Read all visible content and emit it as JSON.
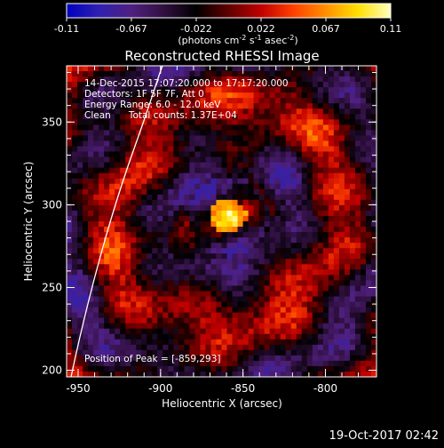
{
  "colorbar": {
    "ticks": [
      "-0.11",
      "-0.067",
      "-0.022",
      "0.022",
      "0.067",
      "0.11"
    ],
    "units_main": "(photons cm",
    "units_sup1": "-2",
    "units_mid": " s",
    "units_sup2": "-1",
    "units_end": " asec",
    "units_sup3": "-2",
    "units_close": ")",
    "stops": [
      "#0000c0",
      "#3020b0",
      "#502080",
      "#301040",
      "#000000",
      "#600000",
      "#c00000",
      "#ff4000",
      "#ff9000",
      "#ffe000",
      "#ffffc0"
    ]
  },
  "plot": {
    "title": "Reconstructed RHESSI Image",
    "info_lines": [
      "14-Dec-2015 17:07:20.000 to 17:17:20.000",
      "Detectors: 1F 5F 7F, Att 0",
      "Energy Range: 6.0 - 12.0 keV",
      "Clean      Total counts: 1.37E+04"
    ],
    "peak_label": "Position of Peak = [-859,293]",
    "xlabel": "Heliocentric X (arcsec)",
    "ylabel": "Heliocentric Y (arcsec)",
    "xticks": [
      "-950",
      "-900",
      "-850",
      "-800"
    ],
    "yticks": [
      "200",
      "250",
      "300",
      "350"
    ],
    "xlim": [
      -957,
      -769
    ],
    "ylim": [
      196,
      384
    ],
    "xtick_values": [
      -950,
      -900,
      -850,
      -800
    ],
    "ytick_values": [
      200,
      250,
      300,
      350
    ]
  },
  "footer": {
    "timestamp": "19-Oct-2017 02:42"
  },
  "chart_data": {
    "type": "heatmap",
    "title": "Reconstructed RHESSI Image",
    "xlabel": "Heliocentric X (arcsec)",
    "ylabel": "Heliocentric Y (arcsec)",
    "xlim": [
      -957,
      -769
    ],
    "ylim": [
      196,
      384
    ],
    "color_range": [
      -0.11,
      0.11
    ],
    "peak": {
      "x": -859,
      "y": 293
    },
    "grid": false
  }
}
